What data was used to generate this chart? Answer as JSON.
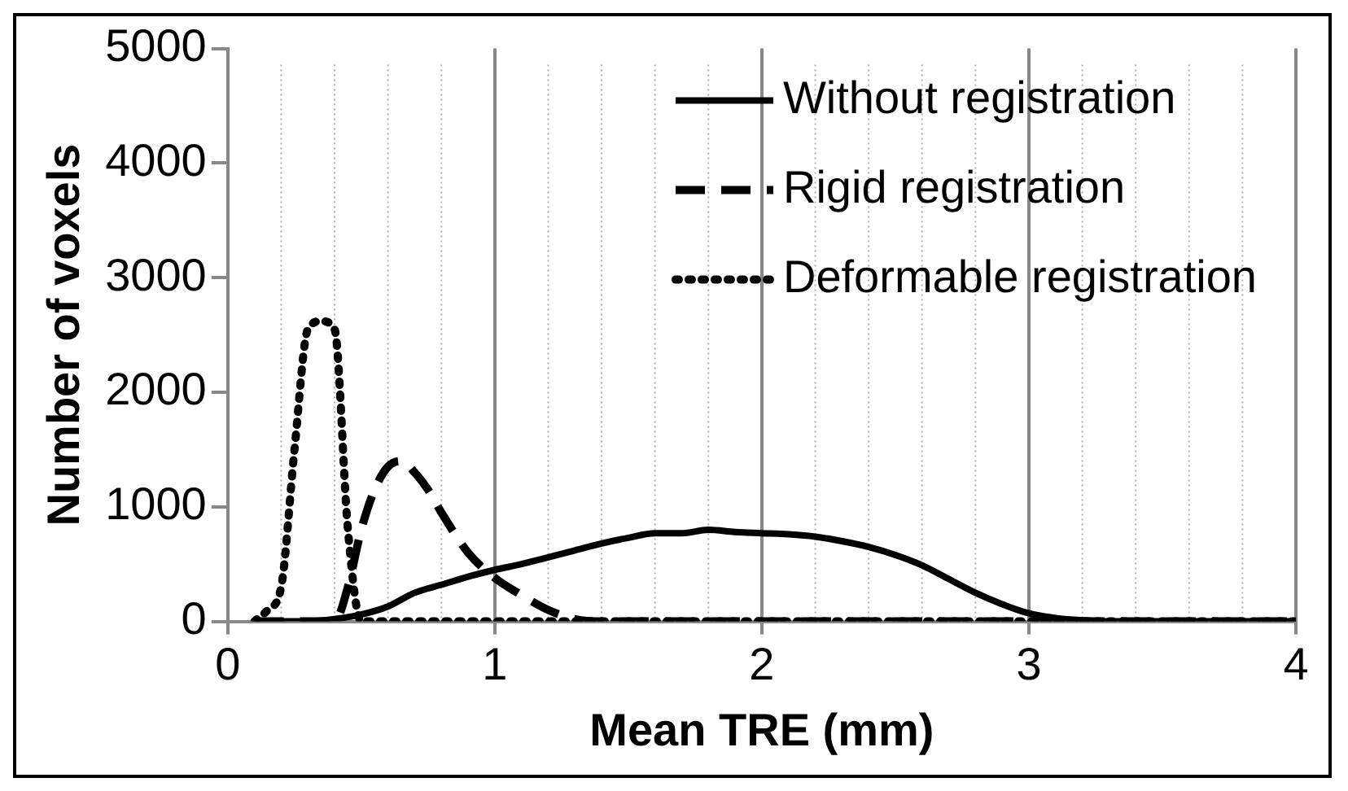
{
  "chart_data": {
    "type": "line",
    "xlabel": "Mean TRE (mm)",
    "ylabel": "Number of voxels",
    "xlim": [
      0,
      4
    ],
    "xticks": [
      0,
      1,
      2,
      3,
      4
    ],
    "ylim": [
      0,
      5000
    ],
    "yticks": [
      0,
      1000,
      2000,
      3000,
      4000,
      5000
    ],
    "grid": "x",
    "legend": "top right",
    "marker": "none",
    "series": [
      {
        "name": "Without registration",
        "color": "#000000",
        "line_style": "solid",
        "x": [
          0.1,
          0.2,
          0.3,
          0.4,
          0.5,
          0.6,
          0.7,
          0.8,
          0.9,
          1.0,
          1.1,
          1.2,
          1.3,
          1.4,
          1.5,
          1.6,
          1.7,
          1.8,
          1.9,
          2.0,
          2.1,
          2.2,
          2.3,
          2.4,
          2.5,
          2.6,
          2.7,
          2.8,
          2.9,
          3.0,
          3.1,
          3.2,
          3.3,
          4.0
        ],
        "values": [
          0,
          0,
          0,
          20,
          60,
          130,
          250,
          320,
          390,
          450,
          500,
          560,
          620,
          680,
          730,
          770,
          770,
          800,
          780,
          770,
          760,
          740,
          700,
          650,
          580,
          490,
          370,
          250,
          150,
          70,
          30,
          10,
          0,
          0
        ]
      },
      {
        "name": "Rigid registration",
        "color": "#000000",
        "line_style": "dashed",
        "x": [
          0.1,
          0.4,
          0.45,
          0.5,
          0.55,
          0.6,
          0.65,
          0.7,
          0.75,
          0.8,
          0.9,
          1.0,
          1.1,
          1.2,
          1.3,
          1.4,
          4.0
        ],
        "values": [
          0,
          0,
          300,
          800,
          1150,
          1350,
          1400,
          1300,
          1150,
          950,
          600,
          380,
          230,
          100,
          20,
          0,
          0
        ]
      },
      {
        "name": "Deformable registration",
        "color": "#000000",
        "line_style": "dotted",
        "x": [
          0.1,
          0.15,
          0.2,
          0.25,
          0.3,
          0.35,
          0.4,
          0.45,
          0.5,
          4.0
        ],
        "values": [
          0,
          100,
          300,
          1500,
          2550,
          2620,
          2550,
          800,
          0,
          0
        ]
      }
    ]
  }
}
